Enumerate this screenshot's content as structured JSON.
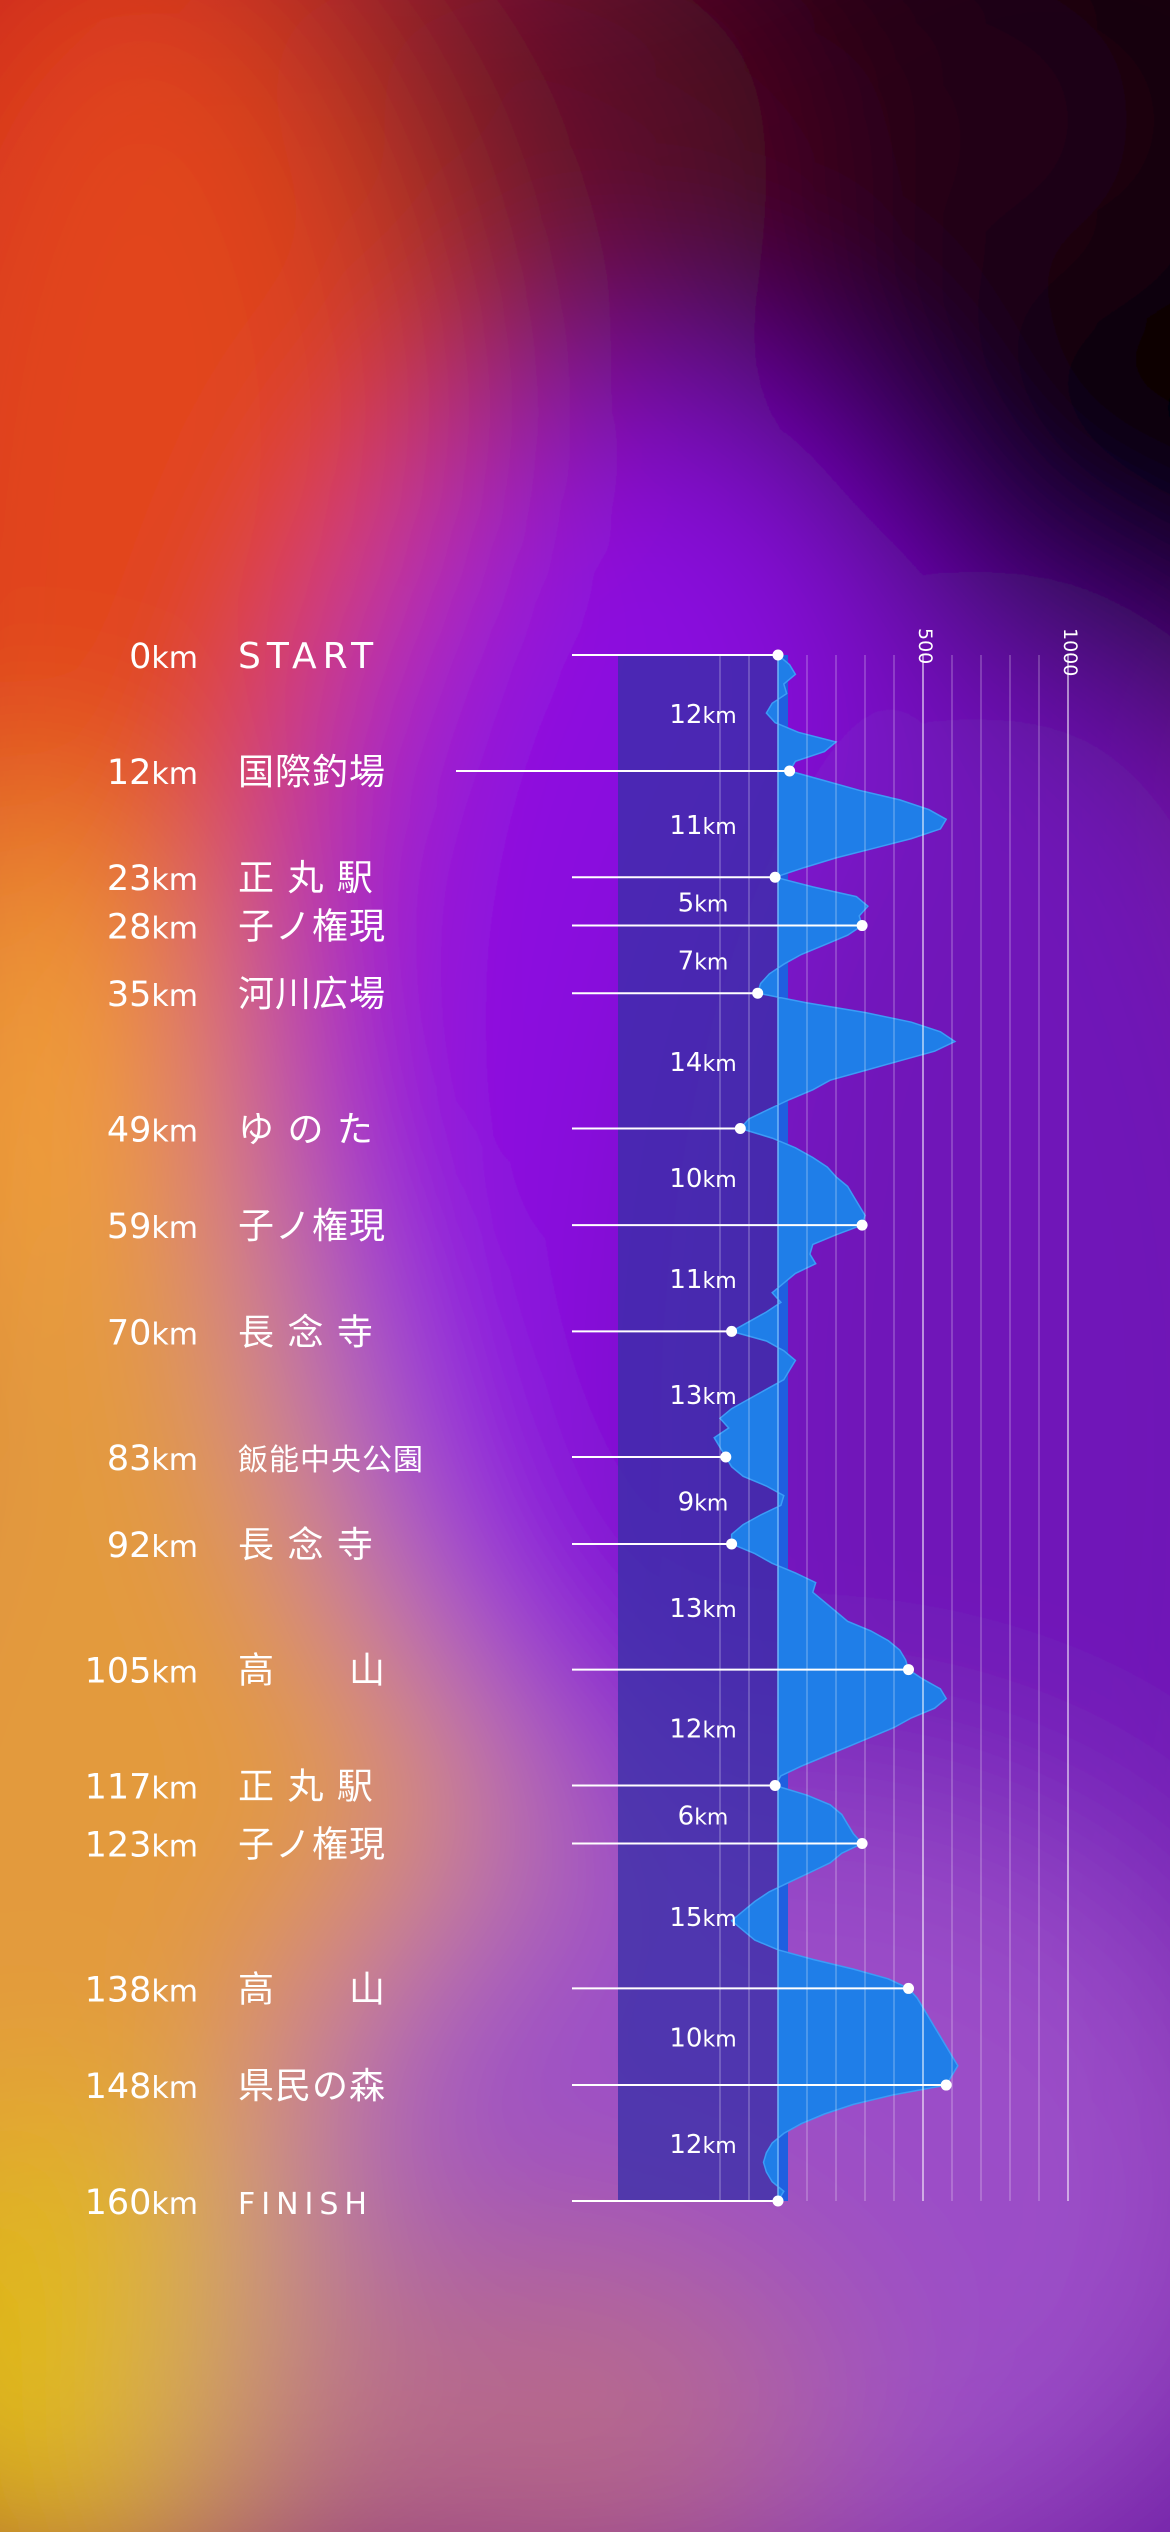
{
  "chart_data": {
    "type": "area",
    "title": "",
    "elevation_axis": {
      "ticks": [
        500,
        1000
      ],
      "range": [
        0,
        1000
      ]
    },
    "distance_range": [
      0,
      160
    ],
    "checkpoints": [
      {
        "km": 0,
        "km_label": "0km",
        "name": "START",
        "elevation": 0
      },
      {
        "km": 12,
        "km_label": "12km",
        "name": "国際釣場",
        "elevation": 40
      },
      {
        "km": 23,
        "km_label": "23km",
        "name": "正 丸 駅",
        "elevation": -10
      },
      {
        "km": 28,
        "km_label": "28km",
        "name": "子ノ権現",
        "elevation": 290
      },
      {
        "km": 35,
        "km_label": "35km",
        "name": "河川広場",
        "elevation": -70
      },
      {
        "km": 49,
        "km_label": "49km",
        "name": "ゆ の た",
        "elevation": -130
      },
      {
        "km": 59,
        "km_label": "59km",
        "name": "子ノ権現",
        "elevation": 290
      },
      {
        "km": 70,
        "km_label": "70km",
        "name": "長 念 寺",
        "elevation": -160
      },
      {
        "km": 83,
        "km_label": "83km",
        "name": "飯能中央公園",
        "elevation": -180
      },
      {
        "km": 92,
        "km_label": "92km",
        "name": "長 念 寺",
        "elevation": -160
      },
      {
        "km": 105,
        "km_label": "105km",
        "name": "高　　山",
        "elevation": 450
      },
      {
        "km": 117,
        "km_label": "117km",
        "name": "正 丸 駅",
        "elevation": -10
      },
      {
        "km": 123,
        "km_label": "123km",
        "name": "子ノ権現",
        "elevation": 290
      },
      {
        "km": 138,
        "km_label": "138km",
        "name": "高　　山",
        "elevation": 450
      },
      {
        "km": 148,
        "km_label": "148km",
        "name": "県民の森",
        "elevation": 580
      },
      {
        "km": 160,
        "km_label": "160km",
        "name": "FINISH",
        "elevation": 0
      }
    ],
    "segments": [
      {
        "from": 0,
        "to": 12,
        "label": "12km"
      },
      {
        "from": 12,
        "to": 23,
        "label": "11km"
      },
      {
        "from": 23,
        "to": 28,
        "label": "5km"
      },
      {
        "from": 28,
        "to": 35,
        "label": "7km"
      },
      {
        "from": 35,
        "to": 49,
        "label": "14km"
      },
      {
        "from": 49,
        "to": 59,
        "label": "10km"
      },
      {
        "from": 59,
        "to": 70,
        "label": "11km"
      },
      {
        "from": 70,
        "to": 83,
        "label": "13km"
      },
      {
        "from": 83,
        "to": 92,
        "label": "9km"
      },
      {
        "from": 92,
        "to": 105,
        "label": "13km"
      },
      {
        "from": 105,
        "to": 117,
        "label": "12km"
      },
      {
        "from": 117,
        "to": 123,
        "label": "6km"
      },
      {
        "from": 123,
        "to": 138,
        "label": "15km"
      },
      {
        "from": 138,
        "to": 148,
        "label": "10km"
      },
      {
        "from": 148,
        "to": 160,
        "label": "12km"
      }
    ],
    "profile": [
      [
        0,
        0
      ],
      [
        1,
        40
      ],
      [
        2,
        60
      ],
      [
        3,
        20
      ],
      [
        4,
        30
      ],
      [
        5,
        -20
      ],
      [
        6,
        -40
      ],
      [
        7,
        -10
      ],
      [
        8,
        70
      ],
      [
        9,
        200
      ],
      [
        10,
        160
      ],
      [
        11,
        60
      ],
      [
        12,
        40
      ],
      [
        13,
        160
      ],
      [
        14,
        280
      ],
      [
        15,
        420
      ],
      [
        16,
        520
      ],
      [
        17,
        580
      ],
      [
        18,
        560
      ],
      [
        19,
        460
      ],
      [
        20,
        330
      ],
      [
        21,
        200
      ],
      [
        22,
        90
      ],
      [
        23,
        -10
      ],
      [
        24,
        120
      ],
      [
        25,
        270
      ],
      [
        26,
        310
      ],
      [
        27,
        280
      ],
      [
        28,
        290
      ],
      [
        29,
        240
      ],
      [
        30,
        160
      ],
      [
        31,
        80
      ],
      [
        32,
        20
      ],
      [
        33,
        -30
      ],
      [
        34,
        -60
      ],
      [
        35,
        -70
      ],
      [
        36,
        100
      ],
      [
        37,
        300
      ],
      [
        38,
        460
      ],
      [
        39,
        560
      ],
      [
        40,
        610
      ],
      [
        41,
        540
      ],
      [
        42,
        420
      ],
      [
        43,
        300
      ],
      [
        44,
        180
      ],
      [
        45,
        120
      ],
      [
        46,
        40
      ],
      [
        47,
        -30
      ],
      [
        48,
        -100
      ],
      [
        49,
        -130
      ],
      [
        50,
        -20
      ],
      [
        51,
        60
      ],
      [
        52,
        120
      ],
      [
        53,
        170
      ],
      [
        54,
        200
      ],
      [
        55,
        240
      ],
      [
        56,
        260
      ],
      [
        57,
        280
      ],
      [
        58,
        300
      ],
      [
        59,
        290
      ],
      [
        60,
        200
      ],
      [
        61,
        120
      ],
      [
        62,
        110
      ],
      [
        63,
        130
      ],
      [
        64,
        60
      ],
      [
        65,
        20
      ],
      [
        66,
        -20
      ],
      [
        67,
        10
      ],
      [
        68,
        -40
      ],
      [
        69,
        -100
      ],
      [
        70,
        -160
      ],
      [
        71,
        -40
      ],
      [
        72,
        20
      ],
      [
        73,
        60
      ],
      [
        74,
        40
      ],
      [
        75,
        20
      ],
      [
        76,
        -40
      ],
      [
        77,
        -100
      ],
      [
        78,
        -160
      ],
      [
        79,
        -200
      ],
      [
        80,
        -170
      ],
      [
        81,
        -220
      ],
      [
        82,
        -200
      ],
      [
        83,
        -180
      ],
      [
        84,
        -160
      ],
      [
        85,
        -120
      ],
      [
        86,
        -40
      ],
      [
        87,
        20
      ],
      [
        88,
        10
      ],
      [
        89,
        -60
      ],
      [
        90,
        -120
      ],
      [
        91,
        -160
      ],
      [
        92,
        -160
      ],
      [
        93,
        -80
      ],
      [
        94,
        -20
      ],
      [
        95,
        60
      ],
      [
        96,
        130
      ],
      [
        97,
        120
      ],
      [
        98,
        160
      ],
      [
        99,
        200
      ],
      [
        100,
        240
      ],
      [
        101,
        320
      ],
      [
        102,
        380
      ],
      [
        103,
        420
      ],
      [
        104,
        440
      ],
      [
        105,
        450
      ],
      [
        106,
        500
      ],
      [
        107,
        560
      ],
      [
        108,
        580
      ],
      [
        109,
        540
      ],
      [
        110,
        460
      ],
      [
        111,
        400
      ],
      [
        112,
        320
      ],
      [
        113,
        240
      ],
      [
        114,
        160
      ],
      [
        115,
        80
      ],
      [
        116,
        10
      ],
      [
        117,
        -10
      ],
      [
        118,
        100
      ],
      [
        119,
        180
      ],
      [
        120,
        220
      ],
      [
        121,
        240
      ],
      [
        122,
        260
      ],
      [
        123,
        290
      ],
      [
        124,
        220
      ],
      [
        125,
        180
      ],
      [
        126,
        110
      ],
      [
        127,
        40
      ],
      [
        128,
        -30
      ],
      [
        129,
        -80
      ],
      [
        130,
        -120
      ],
      [
        131,
        -160
      ],
      [
        132,
        -120
      ],
      [
        133,
        -80
      ],
      [
        134,
        0
      ],
      [
        135,
        120
      ],
      [
        136,
        260
      ],
      [
        137,
        380
      ],
      [
        138,
        450
      ],
      [
        139,
        480
      ],
      [
        140,
        500
      ],
      [
        141,
        520
      ],
      [
        142,
        540
      ],
      [
        143,
        560
      ],
      [
        144,
        580
      ],
      [
        145,
        600
      ],
      [
        146,
        620
      ],
      [
        147,
        600
      ],
      [
        148,
        580
      ],
      [
        149,
        400
      ],
      [
        150,
        260
      ],
      [
        151,
        160
      ],
      [
        152,
        80
      ],
      [
        153,
        20
      ],
      [
        154,
        -20
      ],
      [
        155,
        -40
      ],
      [
        156,
        -50
      ],
      [
        157,
        -40
      ],
      [
        158,
        -20
      ],
      [
        159,
        20
      ],
      [
        160,
        0
      ]
    ]
  }
}
